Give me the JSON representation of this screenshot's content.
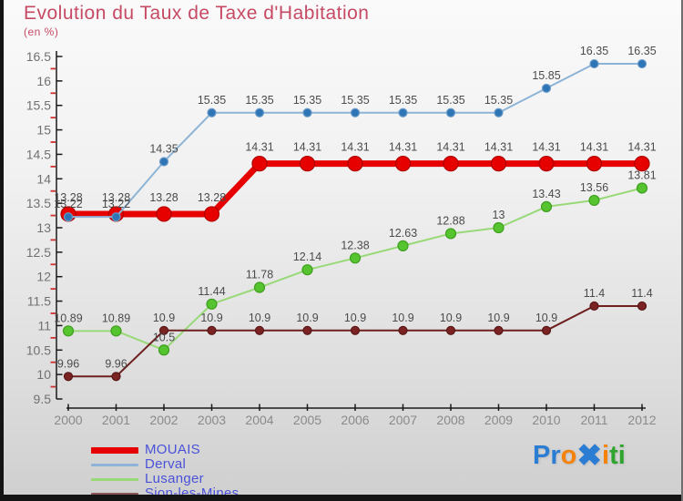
{
  "title": "Evolution du Taux de Taxe d'Habitation",
  "subtitle": "(en %)",
  "colors": {
    "title": "#c64a64",
    "axis": "#1a1a1a",
    "minor_tick": "#d03030",
    "y_label": "#717171",
    "x_label": "#8a8a8a",
    "data_label": "#4b4b4b",
    "legend_text": "#4a52d8",
    "frame_edge": "#141414"
  },
  "chart_data": {
    "type": "line",
    "x": [
      2000,
      2001,
      2002,
      2003,
      2004,
      2005,
      2006,
      2007,
      2008,
      2009,
      2010,
      2011,
      2012
    ],
    "ylim": [
      9.5,
      16.5
    ],
    "y_major_step": 0.5,
    "y_minor_step": 0.25,
    "grid": false,
    "legend_position": "bottom-left",
    "title": "Evolution du Taux de Taxe d'Habitation",
    "subtitle": "(en %)",
    "series": [
      {
        "name": "MOUAIS",
        "line_color": "#e60000",
        "marker_fill": "#e60000",
        "marker_stroke": "#b00000",
        "line_width": 7,
        "marker_radius": 8,
        "values": [
          13.28,
          13.28,
          13.28,
          13.28,
          14.31,
          14.31,
          14.31,
          14.31,
          14.31,
          14.31,
          14.31,
          14.31,
          14.31
        ]
      },
      {
        "name": "Derval",
        "line_color": "#8db4d6",
        "marker_fill": "#2e75b6",
        "marker_stroke": "#6b9bc9",
        "line_width": 2,
        "marker_radius": 4.5,
        "values": [
          13.22,
          13.22,
          14.35,
          15.35,
          15.35,
          15.35,
          15.35,
          15.35,
          15.35,
          15.35,
          15.85,
          16.35,
          16.35
        ]
      },
      {
        "name": "Lusanger",
        "line_color": "#98d977",
        "marker_fill": "#55c42e",
        "marker_stroke": "#3f9e1f",
        "line_width": 2,
        "marker_radius": 5.5,
        "values": [
          10.89,
          10.89,
          10.5,
          11.44,
          11.78,
          12.14,
          12.38,
          12.63,
          12.88,
          13,
          13.43,
          13.56,
          13.81
        ]
      },
      {
        "name": "Sion-les-Mines",
        "line_color": "#6e2020",
        "marker_fill": "#7b2323",
        "marker_stroke": "#571515",
        "line_width": 2,
        "marker_radius": 4.5,
        "values": [
          9.96,
          9.96,
          10.9,
          10.9,
          10.9,
          10.9,
          10.9,
          10.9,
          10.9,
          10.9,
          10.9,
          11.4,
          11.4
        ]
      }
    ]
  },
  "legend": {
    "items": [
      {
        "label": "MOUAIS",
        "color": "#e60000",
        "swatch": "thick"
      },
      {
        "label": "Derval",
        "color": "#8db4d6",
        "swatch": "thin"
      },
      {
        "label": "Lusanger",
        "color": "#98d977",
        "swatch": "thin"
      },
      {
        "label": "Sion-les-Mines",
        "color": "#8a5656",
        "swatch": "thin"
      }
    ]
  },
  "logo": {
    "name": "Proxiti",
    "letters": [
      {
        "ch": "P",
        "color": "#2b7cd3",
        "big": false
      },
      {
        "ch": "r",
        "color": "#2b7cd3",
        "big": false
      },
      {
        "ch": "o",
        "color": "#f5820b",
        "big": false
      },
      {
        "ch": "✖",
        "color": "#2b7cd3",
        "big": true
      },
      {
        "ch": "i",
        "color": "#f5820b",
        "big": false
      },
      {
        "ch": "t",
        "color": "#2fa42f",
        "big": false
      },
      {
        "ch": "i",
        "color": "#2fa42f",
        "big": false
      }
    ]
  }
}
